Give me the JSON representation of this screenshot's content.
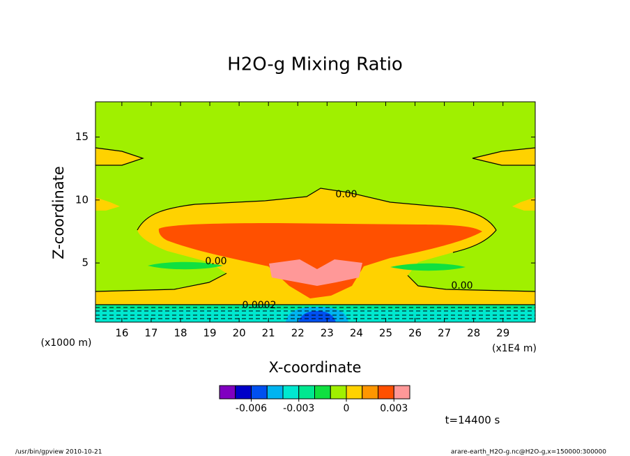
{
  "chart_data": {
    "type": "contour",
    "title": "H2O-g Mixing Ratio",
    "x_label": "X-coordinate",
    "y_label": "Z-coordinate",
    "x_unit": "(x1E4 m)",
    "y_unit": "(x1000 m)",
    "xlim": [
      15.1,
      30.1
    ],
    "ylim": [
      0.3,
      17.8
    ],
    "xticks": [
      16,
      17,
      18,
      19,
      20,
      21,
      22,
      23,
      24,
      25,
      26,
      27,
      28,
      29
    ],
    "yticks": [
      5,
      10,
      15
    ],
    "contour_labels": [
      "0.00",
      "0.00",
      "0.00",
      "0.0002"
    ],
    "colorbar": {
      "levels": [
        -0.008,
        -0.007,
        -0.006,
        -0.005,
        -0.004,
        -0.003,
        -0.002,
        -0.001,
        0,
        0.001,
        0.002,
        0.003,
        0.004
      ],
      "colors": [
        "#8000c0",
        "#0000c8",
        "#0050f0",
        "#00b4f0",
        "#00e8d0",
        "#00e890",
        "#10e040",
        "#a0f000",
        "#ffd200",
        "#ff9600",
        "#ff5000",
        "#ff9898"
      ],
      "ticks": [
        -0.006,
        -0.003,
        0,
        0.003
      ]
    },
    "time_label": "t=14400 s",
    "footer_left": "/usr/bin/gpview   2010-10-21",
    "footer_right": "arare-earth_H2O-g.nc@H2O-g,x=150000:300000"
  }
}
